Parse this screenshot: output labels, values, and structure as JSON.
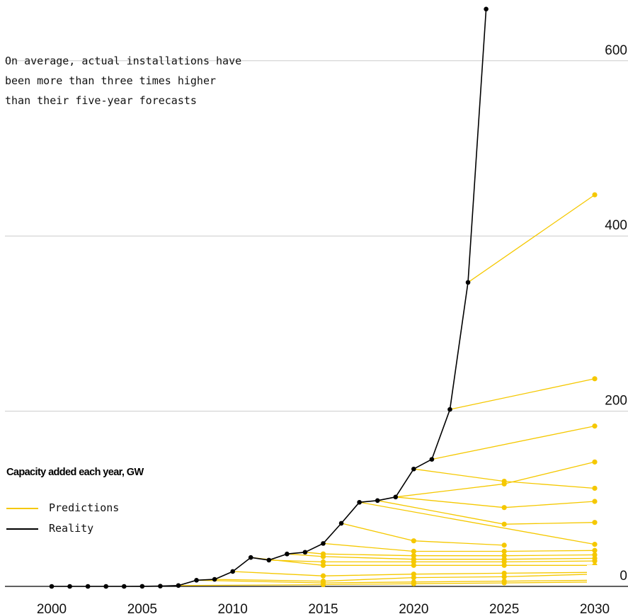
{
  "annotation": {
    "lines": [
      "On average, actual installations have",
      "been more than three times higher",
      "than their five-year forecasts"
    ]
  },
  "legend": {
    "title": "Capacity added each year, GW",
    "items": [
      {
        "label": "Predictions",
        "color": "#f5c800"
      },
      {
        "label": "Reality",
        "color": "#000000"
      }
    ]
  },
  "colors": {
    "reality": "#000000",
    "prediction": "#f5c800",
    "grid": "#cccccc",
    "axis": "#000000"
  },
  "chart_data": {
    "type": "line",
    "title": "",
    "xlabel": "",
    "ylabel": "",
    "xlim": [
      2000,
      2030
    ],
    "ylim": [
      0,
      650
    ],
    "x_ticks": [
      2000,
      2005,
      2010,
      2015,
      2020,
      2025,
      2030
    ],
    "y_ticks": [
      0,
      200,
      400,
      600
    ],
    "y_tick_side": "right",
    "grid": "horizontal",
    "legend_position": "bottom-left",
    "series": [
      {
        "name": "Reality",
        "x": [
          2000,
          2001,
          2002,
          2003,
          2004,
          2005,
          2006,
          2007,
          2008,
          2009,
          2010,
          2011,
          2012,
          2013,
          2014,
          2015,
          2016,
          2017,
          2018,
          2019,
          2020,
          2021,
          2022,
          2023,
          2024
        ],
        "y": [
          0,
          0,
          0,
          0,
          0,
          0.1,
          0.3,
          1,
          7,
          8,
          17,
          33,
          30,
          37,
          39,
          49,
          72,
          96,
          98,
          102,
          134,
          145,
          202,
          347,
          659
        ]
      },
      {
        "name": "Predictions",
        "x": [
          2007,
          2015,
          2020,
          2025,
          2030
        ],
        "y": [
          1,
          2,
          3,
          4,
          5
        ]
      },
      {
        "name": "Predictions",
        "x": [
          2008,
          2015,
          2020,
          2025,
          2030
        ],
        "y": [
          7,
          4,
          5,
          6,
          7
        ]
      },
      {
        "name": "Predictions",
        "x": [
          2009,
          2015,
          2020,
          2025,
          2030
        ],
        "y": [
          8,
          6,
          10,
          11,
          14
        ]
      },
      {
        "name": "Predictions",
        "x": [
          2010,
          2015,
          2020,
          2025,
          2030
        ],
        "y": [
          17,
          12,
          14,
          15,
          16
        ]
      },
      {
        "name": "Predictions",
        "x": [
          2011,
          2015,
          2020,
          2025,
          2030
        ],
        "y": [
          33,
          24,
          24,
          24,
          24
        ]
      },
      {
        "name": "Predictions",
        "x": [
          2012,
          2015,
          2020,
          2025,
          2030
        ],
        "y": [
          30,
          28,
          28,
          28,
          29
        ]
      },
      {
        "name": "Predictions",
        "x": [
          2013,
          2015,
          2020,
          2025,
          2030
        ],
        "y": [
          37,
          34,
          31,
          31,
          32
        ]
      },
      {
        "name": "Predictions",
        "x": [
          2014,
          2015,
          2020,
          2025,
          2030
        ],
        "y": [
          39,
          37,
          35,
          35,
          36
        ]
      },
      {
        "name": "Predictions",
        "x": [
          2015,
          2020,
          2025,
          2030
        ],
        "y": [
          49,
          40,
          40,
          41
        ]
      },
      {
        "name": "Predictions",
        "x": [
          2016,
          2020,
          2025
        ],
        "y": [
          72,
          52,
          47
        ]
      },
      {
        "name": "Predictions",
        "x": [
          2017,
          2030
        ],
        "y": [
          96,
          48
        ]
      },
      {
        "name": "Predictions",
        "x": [
          2018,
          2025,
          2030
        ],
        "y": [
          98,
          71,
          73
        ]
      },
      {
        "name": "Predictions",
        "x": [
          2019,
          2025,
          2030
        ],
        "y": [
          102,
          90,
          97
        ]
      },
      {
        "name": "Predictions",
        "x": [
          2020,
          2025,
          2030
        ],
        "y": [
          134,
          120,
          112
        ]
      },
      {
        "name": "Predictions",
        "x": [
          2019,
          2025,
          2030
        ],
        "y": [
          102,
          117,
          142
        ]
      },
      {
        "name": "Predictions",
        "x": [
          2021,
          2030
        ],
        "y": [
          145,
          183
        ]
      },
      {
        "name": "Predictions",
        "x": [
          2022,
          2030
        ],
        "y": [
          202,
          237
        ]
      },
      {
        "name": "Predictions",
        "x": [
          2023,
          2030
        ],
        "y": [
          347,
          447
        ]
      }
    ]
  }
}
